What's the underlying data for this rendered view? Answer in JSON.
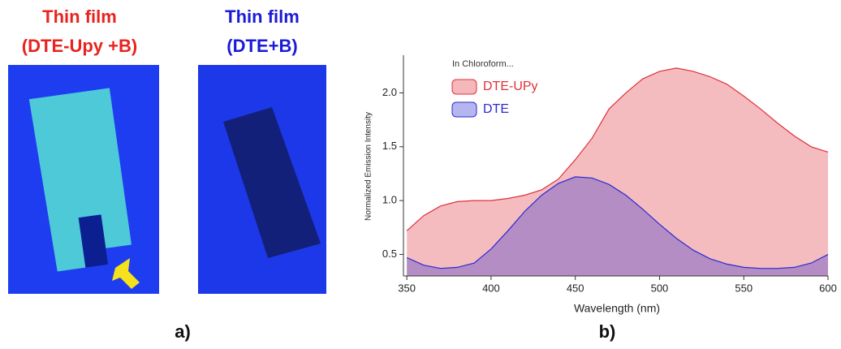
{
  "panels": {
    "a": {
      "label": "a)",
      "images": [
        {
          "title": "Thin film",
          "subtitle": "(DTE-Upy +B)"
        },
        {
          "title": "Thin film",
          "subtitle": "(DTE+B)"
        }
      ]
    },
    "b": {
      "label": "b)"
    }
  },
  "chart_data": {
    "type": "area",
    "annotation": "In Chloroform...",
    "x_label": "Wavelength (nm)",
    "y_label": "Normalized Emission Intensity",
    "x": [
      350,
      360,
      370,
      380,
      390,
      400,
      410,
      420,
      430,
      440,
      450,
      460,
      470,
      480,
      490,
      500,
      510,
      520,
      530,
      540,
      550,
      560,
      570,
      580,
      590,
      600
    ],
    "series": [
      {
        "name": "DTE-UPy",
        "color": "#e0303a",
        "values": [
          0.72,
          0.86,
          0.95,
          0.99,
          1.0,
          1.0,
          1.02,
          1.05,
          1.1,
          1.2,
          1.38,
          1.58,
          1.85,
          2.0,
          2.13,
          2.2,
          2.23,
          2.2,
          2.15,
          2.08,
          1.97,
          1.85,
          1.72,
          1.6,
          1.5,
          1.45
        ]
      },
      {
        "name": "DTE",
        "color": "#2a2ad0",
        "values": [
          0.47,
          0.4,
          0.37,
          0.38,
          0.42,
          0.55,
          0.72,
          0.9,
          1.05,
          1.16,
          1.22,
          1.21,
          1.15,
          1.05,
          0.92,
          0.78,
          0.65,
          0.54,
          0.46,
          0.41,
          0.38,
          0.37,
          0.37,
          0.38,
          0.42,
          0.5
        ]
      }
    ],
    "xlim": [
      348,
      600
    ],
    "ylim": [
      0.3,
      2.35
    ],
    "xticks": [
      350,
      400,
      450,
      500,
      550,
      600
    ],
    "yticks": [
      0.5,
      {
        "value": 1,
        "label": "1.0"
      },
      1.5,
      {
        "value": 2,
        "label": "2.0"
      }
    ]
  }
}
